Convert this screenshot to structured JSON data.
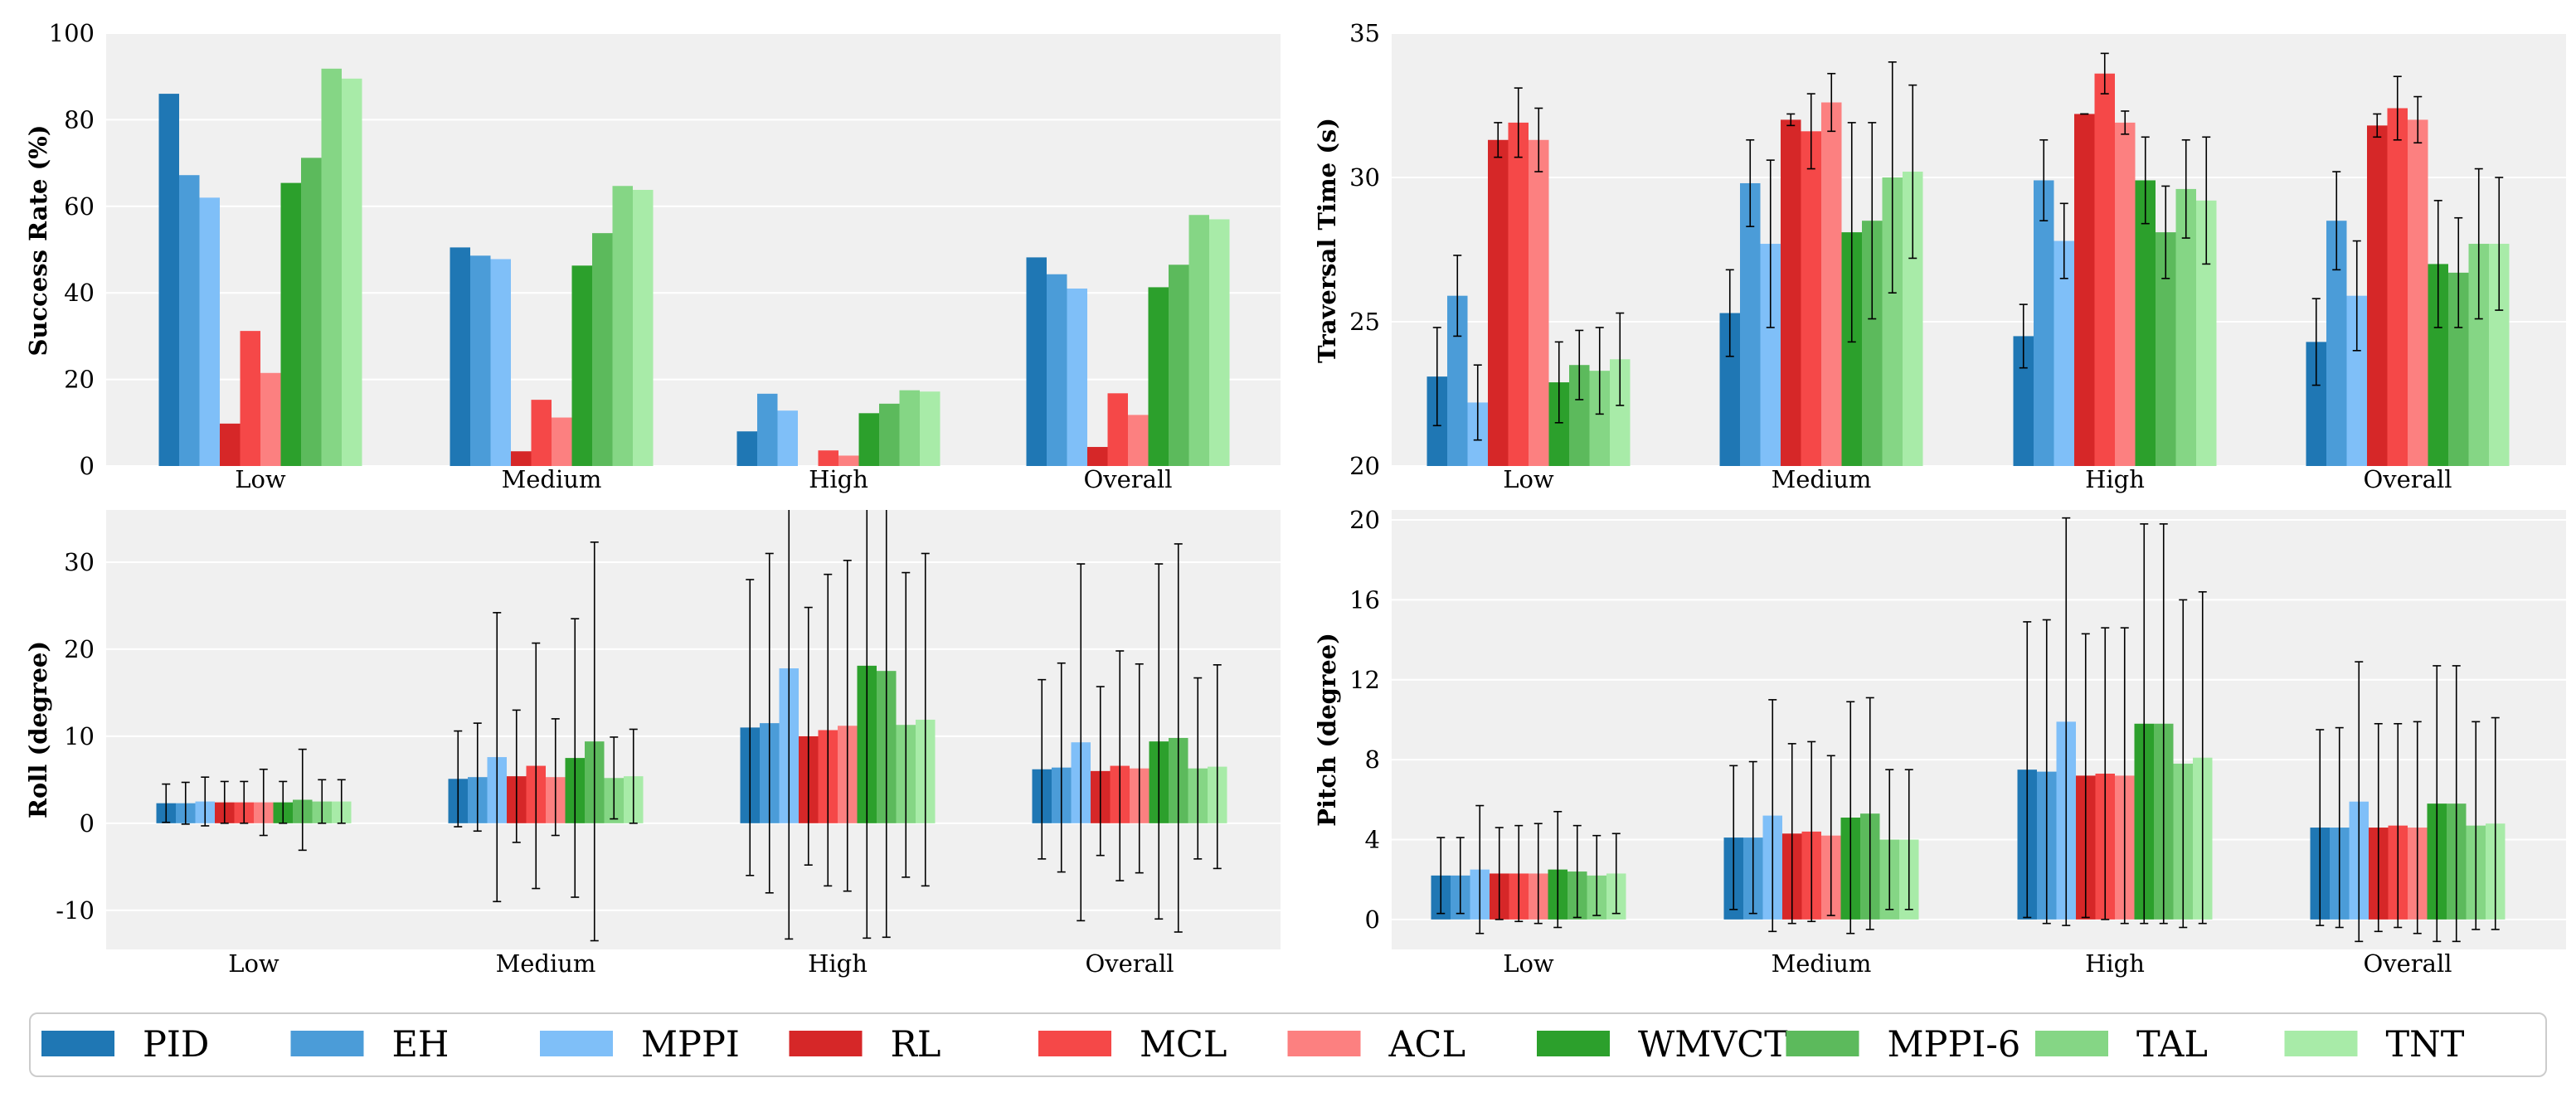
{
  "legend": {
    "entries": [
      "PID",
      "EH",
      "MPPI",
      "RL",
      "MCL",
      "ACL",
      "WMVCT",
      "MPPI-6",
      "TAL",
      "TNT"
    ],
    "colors": [
      "#1f77b4",
      "#4b9cd8",
      "#7fbff8",
      "#d62728",
      "#f54848",
      "#fc8080",
      "#2ca02c",
      "#5cba5c",
      "#85d685",
      "#a8eba8"
    ]
  },
  "chart_data": [
    {
      "type": "bar",
      "name": "success-rate",
      "title": "",
      "xlabel": "",
      "ylabel": "Success Rate (%)",
      "ylim": [
        0,
        100
      ],
      "yticks": [
        0,
        20,
        40,
        60,
        80,
        100
      ],
      "ytick_labels": [
        "0",
        "20",
        "40",
        "60",
        "80",
        "100"
      ],
      "grid": true,
      "categories": [
        "Low",
        "Medium",
        "High",
        "Overall"
      ],
      "series": [
        {
          "name": "PID",
          "values": [
            86,
            50.5,
            8,
            48.2
          ]
        },
        {
          "name": "EH",
          "values": [
            67.2,
            48.6,
            16.7,
            44.3
          ]
        },
        {
          "name": "MPPI",
          "values": [
            62,
            47.8,
            12.8,
            41
          ]
        },
        {
          "name": "RL",
          "values": [
            9.8,
            3.4,
            0,
            4.4
          ]
        },
        {
          "name": "MCL",
          "values": [
            31.2,
            15.3,
            3.6,
            16.8
          ]
        },
        {
          "name": "ACL",
          "values": [
            21.5,
            11.2,
            2.4,
            11.8
          ]
        },
        {
          "name": "WMVCT",
          "values": [
            65.4,
            46.3,
            12.2,
            41.3
          ]
        },
        {
          "name": "MPPI-6",
          "values": [
            71.2,
            53.8,
            14.4,
            46.5
          ]
        },
        {
          "name": "TAL",
          "values": [
            91.8,
            64.7,
            17.5,
            58
          ]
        },
        {
          "name": "TNT",
          "values": [
            89.5,
            63.8,
            17.2,
            57
          ]
        }
      ]
    },
    {
      "type": "bar",
      "name": "traversal-time",
      "title": "",
      "xlabel": "",
      "ylabel": "Traversal Time (s)",
      "ylim": [
        20,
        35
      ],
      "yticks": [
        20,
        25,
        30,
        35
      ],
      "ytick_labels": [
        "20",
        "25",
        "30",
        "35"
      ],
      "grid": true,
      "categories": [
        "Low",
        "Medium",
        "High",
        "Overall"
      ],
      "series": [
        {
          "name": "PID",
          "values": [
            23.1,
            25.3,
            24.5,
            24.3
          ],
          "errors": [
            1.7,
            1.5,
            1.1,
            1.5
          ]
        },
        {
          "name": "EH",
          "values": [
            25.9,
            29.8,
            29.9,
            28.5
          ],
          "errors": [
            1.4,
            1.5,
            1.4,
            1.7
          ]
        },
        {
          "name": "MPPI",
          "values": [
            22.2,
            27.7,
            27.8,
            25.9
          ],
          "errors": [
            1.3,
            2.9,
            1.3,
            1.9
          ]
        },
        {
          "name": "RL",
          "values": [
            31.3,
            32.0,
            32.2,
            31.8
          ],
          "errors": [
            0.6,
            0.2,
            0,
            0.4
          ]
        },
        {
          "name": "MCL",
          "values": [
            31.9,
            31.6,
            33.6,
            32.4
          ],
          "errors": [
            1.2,
            1.3,
            0.7,
            1.1
          ]
        },
        {
          "name": "ACL",
          "values": [
            31.3,
            32.6,
            31.9,
            32.0
          ],
          "errors": [
            1.1,
            1.0,
            0.4,
            0.8
          ]
        },
        {
          "name": "WMVCT",
          "values": [
            22.9,
            28.1,
            29.9,
            27.0
          ],
          "errors": [
            1.4,
            3.8,
            1.5,
            2.2
          ]
        },
        {
          "name": "MPPI-6",
          "values": [
            23.5,
            28.5,
            28.1,
            26.7
          ],
          "errors": [
            1.2,
            3.4,
            1.6,
            1.9
          ]
        },
        {
          "name": "TAL",
          "values": [
            23.3,
            30.0,
            29.6,
            27.7
          ],
          "errors": [
            1.5,
            4.0,
            1.7,
            2.6
          ]
        },
        {
          "name": "TNT",
          "values": [
            23.7,
            30.2,
            29.2,
            27.7
          ],
          "errors": [
            1.6,
            3.0,
            2.2,
            2.3
          ]
        }
      ]
    },
    {
      "type": "bar",
      "name": "roll",
      "title": "",
      "xlabel": "",
      "ylabel": "Roll (degree)",
      "ylim": [
        -14.5,
        36
      ],
      "yticks": [
        -10,
        0,
        10,
        20,
        30
      ],
      "ytick_labels": [
        "-10",
        "0",
        "10",
        "20",
        "30"
      ],
      "grid": true,
      "categories": [
        "Low",
        "Medium",
        "High",
        "Overall"
      ],
      "series": [
        {
          "name": "PID",
          "values": [
            2.3,
            5.1,
            11.0,
            6.2
          ],
          "errors": [
            2.2,
            5.5,
            17.0,
            10.3
          ]
        },
        {
          "name": "EH",
          "values": [
            2.3,
            5.3,
            11.5,
            6.4
          ],
          "errors": [
            2.4,
            6.2,
            19.5,
            12.0
          ]
        },
        {
          "name": "MPPI",
          "values": [
            2.5,
            7.6,
            17.8,
            9.3
          ],
          "errors": [
            2.8,
            16.6,
            31.1,
            20.5
          ]
        },
        {
          "name": "RL",
          "values": [
            2.4,
            5.4,
            10.0,
            6.0
          ],
          "errors": [
            2.4,
            7.6,
            14.8,
            9.7
          ]
        },
        {
          "name": "MCL",
          "values": [
            2.4,
            6.6,
            10.7,
            6.6
          ],
          "errors": [
            2.4,
            14.1,
            17.9,
            13.2
          ]
        },
        {
          "name": "ACL",
          "values": [
            2.4,
            5.3,
            11.2,
            6.3
          ],
          "errors": [
            3.8,
            6.7,
            19.0,
            12.0
          ]
        },
        {
          "name": "WMVCT",
          "values": [
            2.4,
            7.5,
            18.1,
            9.4
          ],
          "errors": [
            2.4,
            16.0,
            31.3,
            20.4
          ]
        },
        {
          "name": "MPPI-6",
          "values": [
            2.7,
            9.4,
            17.5,
            9.8
          ],
          "errors": [
            5.8,
            22.9,
            30.6,
            22.3
          ]
        },
        {
          "name": "TAL",
          "values": [
            2.5,
            5.2,
            11.3,
            6.3
          ],
          "errors": [
            2.5,
            4.7,
            17.5,
            10.4
          ]
        },
        {
          "name": "TNT",
          "values": [
            2.5,
            5.4,
            11.9,
            6.5
          ],
          "errors": [
            2.5,
            5.4,
            19.1,
            11.7
          ]
        }
      ]
    },
    {
      "type": "bar",
      "name": "pitch",
      "title": "",
      "xlabel": "",
      "ylabel": "Pitch (degree)",
      "ylim": [
        -1.5,
        20.5
      ],
      "yticks": [
        0,
        4,
        8,
        12,
        16,
        20
      ],
      "ytick_labels": [
        "0",
        "4",
        "8",
        "12",
        "16",
        "20"
      ],
      "grid": true,
      "categories": [
        "Low",
        "Medium",
        "High",
        "Overall"
      ],
      "series": [
        {
          "name": "PID",
          "values": [
            2.2,
            4.1,
            7.5,
            4.6
          ],
          "errors": [
            1.9,
            3.6,
            7.4,
            4.9
          ]
        },
        {
          "name": "EH",
          "values": [
            2.2,
            4.1,
            7.4,
            4.6
          ],
          "errors": [
            1.9,
            3.8,
            7.6,
            5.0
          ]
        },
        {
          "name": "MPPI",
          "values": [
            2.5,
            5.2,
            9.9,
            5.9
          ],
          "errors": [
            3.2,
            5.8,
            10.2,
            7.0
          ]
        },
        {
          "name": "RL",
          "values": [
            2.3,
            4.3,
            7.2,
            4.6
          ],
          "errors": [
            2.3,
            4.5,
            7.1,
            5.2
          ]
        },
        {
          "name": "MCL",
          "values": [
            2.3,
            4.4,
            7.3,
            4.7
          ],
          "errors": [
            2.4,
            4.5,
            7.3,
            5.1
          ]
        },
        {
          "name": "ACL",
          "values": [
            2.3,
            4.2,
            7.2,
            4.6
          ],
          "errors": [
            2.5,
            4.0,
            7.4,
            5.3
          ]
        },
        {
          "name": "WMVCT",
          "values": [
            2.5,
            5.1,
            9.8,
            5.8
          ],
          "errors": [
            2.9,
            5.8,
            10.0,
            6.9
          ]
        },
        {
          "name": "MPPI-6",
          "values": [
            2.4,
            5.3,
            9.8,
            5.8
          ],
          "errors": [
            2.3,
            5.8,
            10.0,
            6.9
          ]
        },
        {
          "name": "TAL",
          "values": [
            2.2,
            4.0,
            7.8,
            4.7
          ],
          "errors": [
            2.0,
            3.5,
            8.2,
            5.2
          ]
        },
        {
          "name": "TNT",
          "values": [
            2.3,
            4.0,
            8.1,
            4.8
          ],
          "errors": [
            2.0,
            3.5,
            8.3,
            5.3
          ]
        }
      ]
    }
  ]
}
